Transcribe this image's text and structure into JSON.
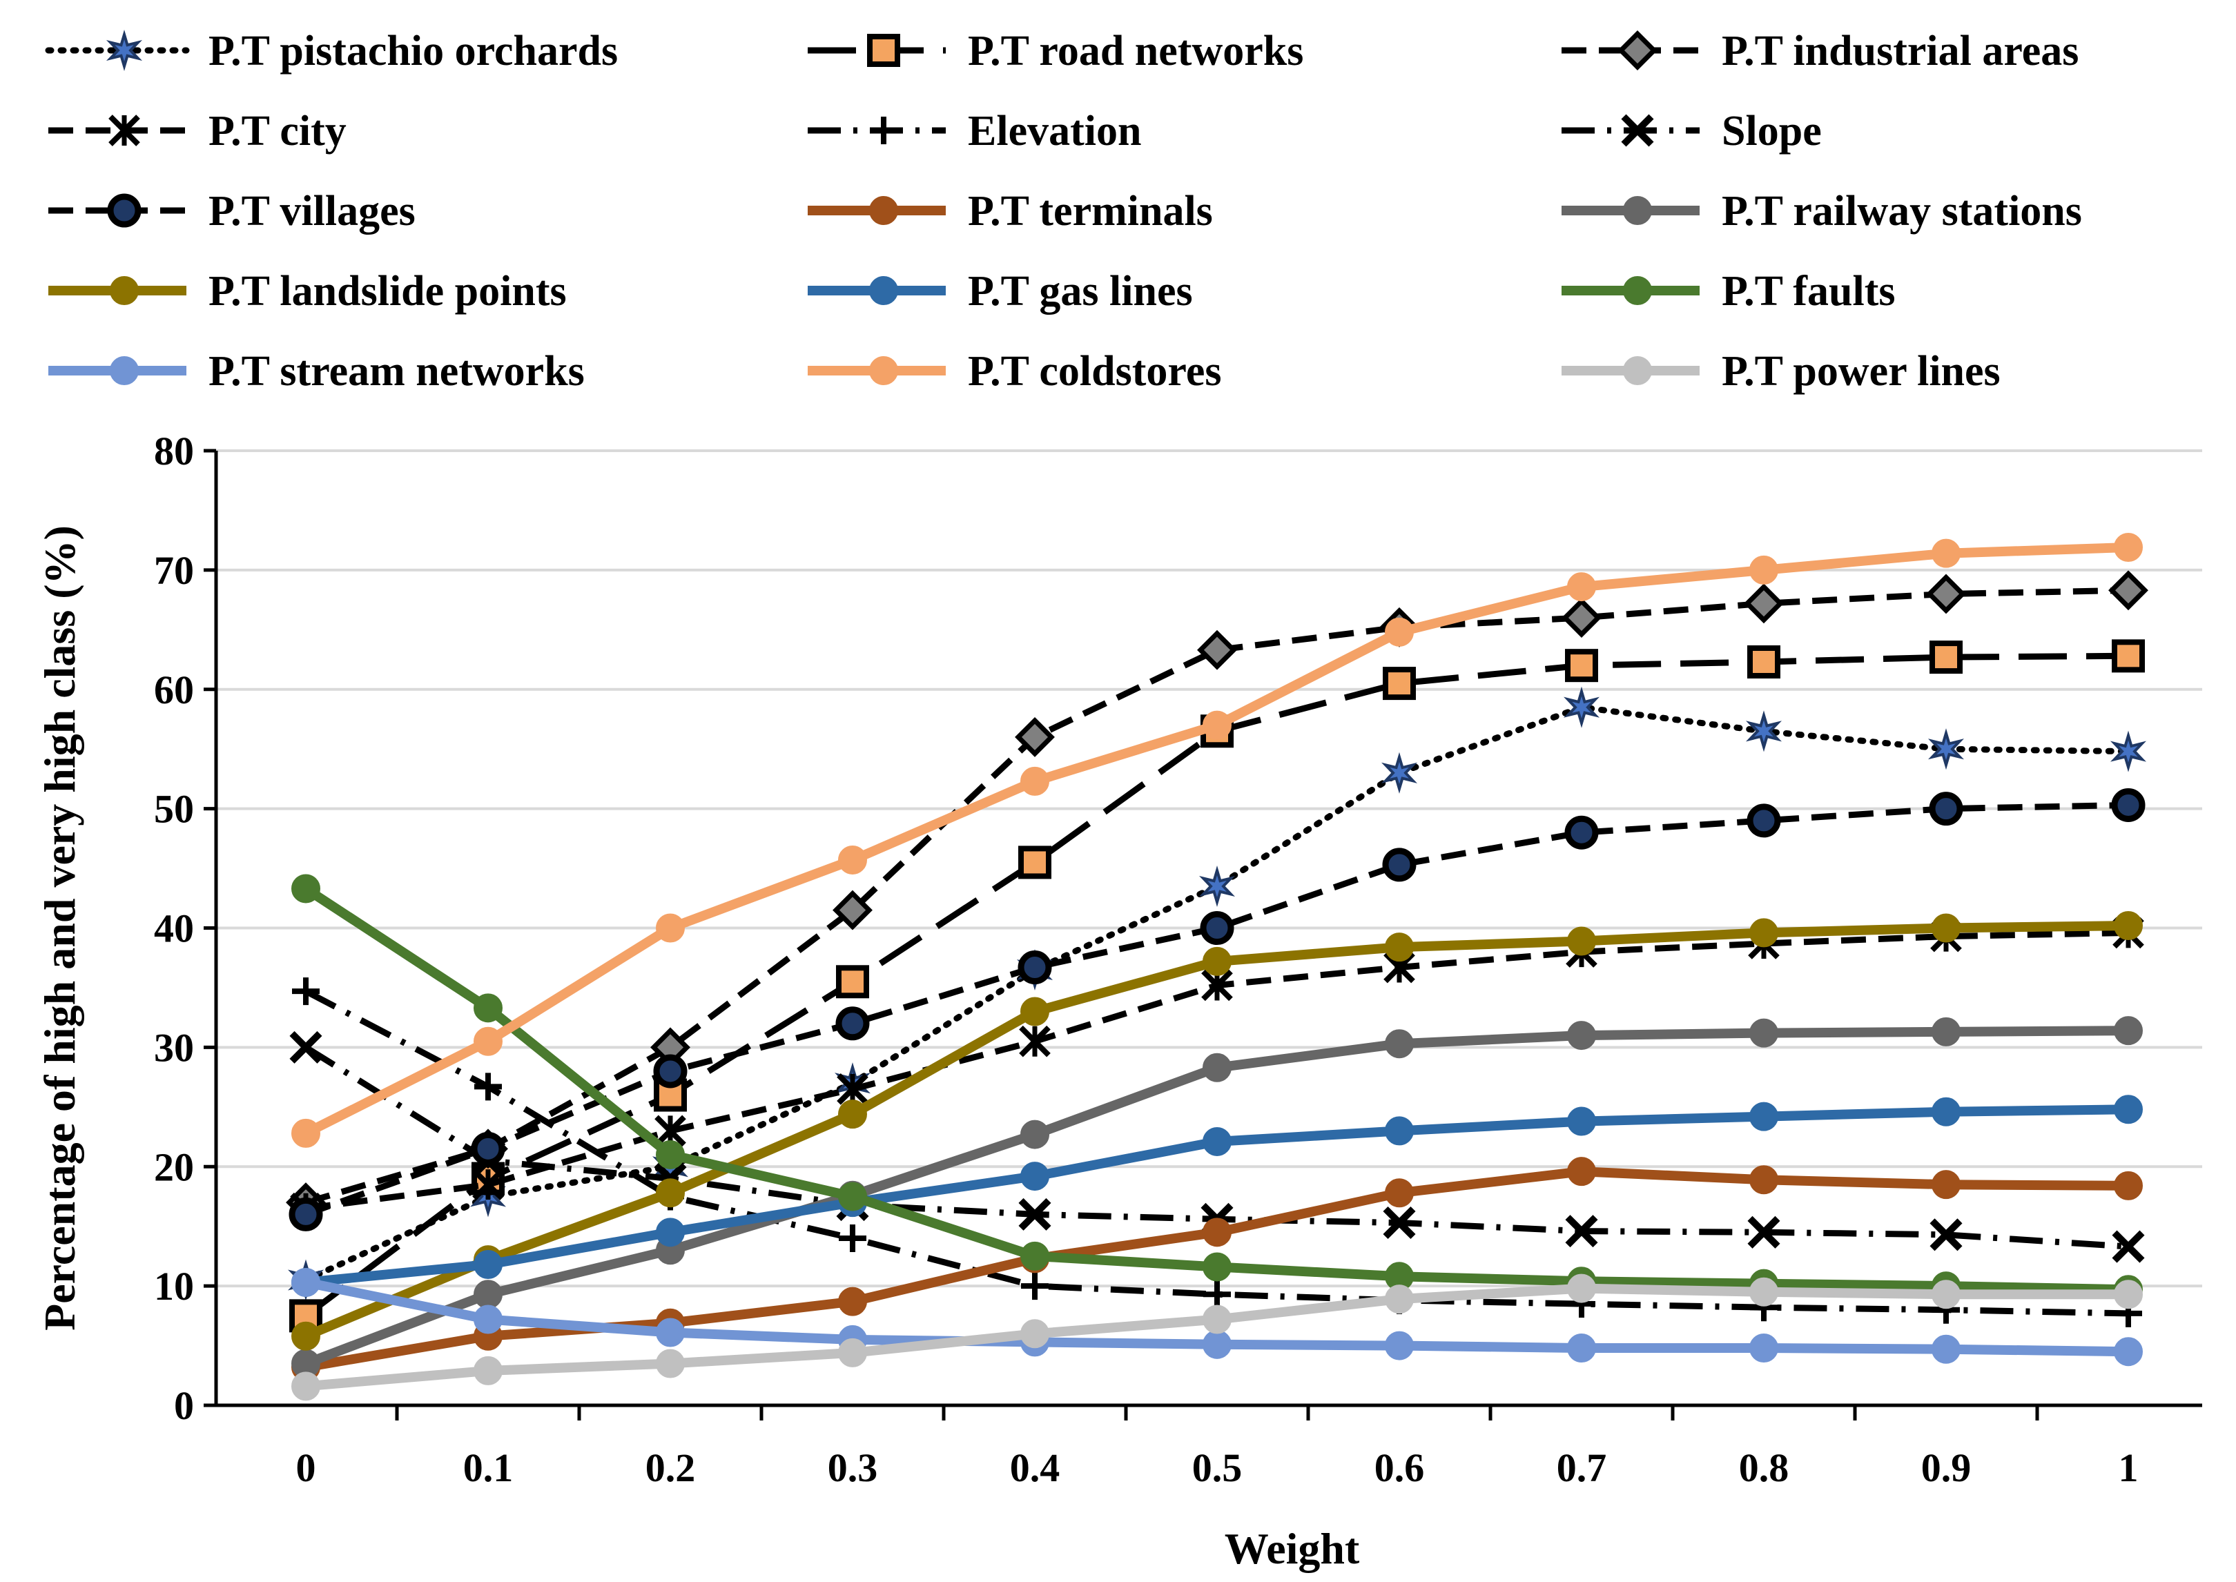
{
  "chart_data": {
    "type": "line",
    "title": "",
    "xlabel": "Weight",
    "ylabel": "Percentage of high and very high class (%)",
    "ylim": [
      0,
      80
    ],
    "yticks": [
      "0",
      "10",
      "20",
      "30",
      "40",
      "50",
      "60",
      "70",
      "80"
    ],
    "categories": [
      "0",
      "0.1",
      "0.2",
      "0.3",
      "0.4",
      "0.5",
      "0.6",
      "0.7",
      "0.8",
      "0.9",
      "1"
    ],
    "grid": "horizontal",
    "legend_position": "top",
    "series": [
      {
        "name": "P.T pistachio orchards",
        "color": "#000000",
        "marker_fill": "#4472c4",
        "marker": "star",
        "dash": "dotted",
        "values": [
          10.5,
          17.5,
          20,
          27,
          36.5,
          43.5,
          53,
          58.5,
          56.5,
          55,
          54.8
        ]
      },
      {
        "name": "P.T road networks",
        "color": "#000000",
        "marker_fill": "#f4a460",
        "marker": "square",
        "dash": "longdash",
        "values": [
          7.5,
          19,
          26,
          35.5,
          45.5,
          56.5,
          60.5,
          62,
          62.3,
          62.7,
          62.8
        ]
      },
      {
        "name": "P.T industrial areas",
        "color": "#000000",
        "marker_fill": "#808080",
        "marker": "diamond",
        "dash": "dash",
        "values": [
          17,
          21.5,
          30,
          41.5,
          56,
          63.3,
          65.2,
          66,
          67.2,
          68,
          68.3
        ]
      },
      {
        "name": "P.T city",
        "color": "#000000",
        "marker_fill": "#000000",
        "marker": "xstar",
        "dash": "dash",
        "values": [
          16.5,
          18.5,
          23,
          26.5,
          30.5,
          35.2,
          36.7,
          38,
          38.7,
          39.3,
          39.6
        ]
      },
      {
        "name": "Elevation",
        "color": "#000000",
        "marker_fill": "#000000",
        "marker": "plus",
        "dash": "dashdot",
        "values": [
          34.7,
          26.7,
          17.5,
          14,
          10,
          9.3,
          8.8,
          8.5,
          8.2,
          8,
          7.7
        ]
      },
      {
        "name": "Slope",
        "color": "#000000",
        "marker_fill": "#000000",
        "marker": "x",
        "dash": "dashdot",
        "values": [
          30,
          20.5,
          19,
          16.8,
          16,
          15.6,
          15.3,
          14.6,
          14.5,
          14.3,
          13.3
        ]
      },
      {
        "name": "P.T villages",
        "color": "#000000",
        "marker_fill": "#1f3864",
        "marker": "circle",
        "dash": "dash",
        "values": [
          16,
          21.5,
          28,
          32,
          36.7,
          40,
          45.3,
          48,
          49,
          50,
          50.3
        ]
      },
      {
        "name": "P.T terminals",
        "color": "#a0501a",
        "marker_fill": "#a0501a",
        "marker": "circle",
        "dash": "solid",
        "values": [
          3.2,
          5.8,
          6.9,
          8.7,
          12.3,
          14.5,
          17.8,
          19.6,
          18.9,
          18.5,
          18.4
        ]
      },
      {
        "name": "P.T railway stations",
        "color": "#666666",
        "marker_fill": "#666666",
        "marker": "circle",
        "dash": "solid",
        "values": [
          3.5,
          9.3,
          13,
          17.6,
          22.7,
          28.3,
          30.3,
          31,
          31.2,
          31.3,
          31.4
        ]
      },
      {
        "name": "P.T landslide points",
        "color": "#8c7300",
        "marker_fill": "#8c7300",
        "marker": "circle",
        "dash": "solid",
        "values": [
          5.8,
          12.2,
          17.8,
          24.4,
          33,
          37.2,
          38.4,
          38.9,
          39.6,
          40,
          40.2
        ]
      },
      {
        "name": "P.T gas lines",
        "color": "#2e6aa6",
        "marker_fill": "#2e6aa6",
        "marker": "circle",
        "dash": "solid",
        "values": [
          10.3,
          11.8,
          14.5,
          17,
          19.2,
          22.1,
          23,
          23.8,
          24.2,
          24.6,
          24.8
        ]
      },
      {
        "name": "P.T faults",
        "color": "#4a7a2e",
        "marker_fill": "#4a7a2e",
        "marker": "circle",
        "dash": "solid",
        "values": [
          43.3,
          33.3,
          21,
          17.5,
          12.5,
          11.6,
          10.8,
          10.4,
          10.2,
          10,
          9.7
        ]
      },
      {
        "name": "P.T stream networks",
        "color": "#7194d4",
        "marker_fill": "#7194d4",
        "marker": "circle",
        "dash": "solid",
        "values": [
          10.3,
          7.2,
          6.1,
          5.5,
          5.3,
          5.1,
          5,
          4.8,
          4.8,
          4.7,
          4.5
        ]
      },
      {
        "name": "P.T coldstores",
        "color": "#f4a267",
        "marker_fill": "#f4a267",
        "marker": "circle",
        "dash": "solid",
        "values": [
          22.8,
          30.5,
          40,
          45.7,
          52.3,
          57,
          64.8,
          68.6,
          70,
          71.4,
          71.9
        ]
      },
      {
        "name": "P.T power lines",
        "color": "#c0c0c0",
        "marker_fill": "#c0c0c0",
        "marker": "circle",
        "dash": "solid",
        "values": [
          1.6,
          2.9,
          3.5,
          4.4,
          6,
          7.2,
          8.9,
          9.8,
          9.5,
          9.3,
          9.3
        ]
      }
    ]
  }
}
